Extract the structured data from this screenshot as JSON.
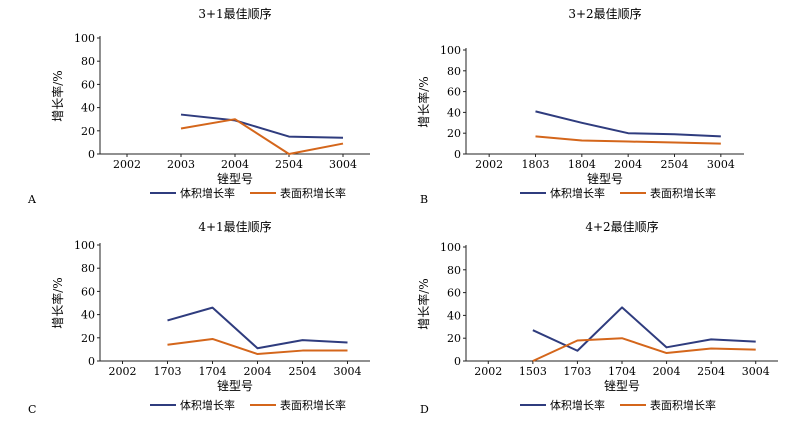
{
  "colors": {
    "volume": "#2f3c7e",
    "surface": "#d4661b",
    "axis": "#222222"
  },
  "chart_data": [
    {
      "type": "line",
      "panel": "A",
      "title": "3+1最佳顺序",
      "xlabel": "锉型号",
      "ylabel": "增长率/%",
      "categories": [
        "2002",
        "2003",
        "2004",
        "2504",
        "3004"
      ],
      "ylim": [
        0,
        100
      ],
      "yticks": [
        0,
        20,
        40,
        60,
        80,
        100
      ],
      "series": [
        {
          "name": "体积增长率",
          "values": [
            null,
            34,
            29,
            15,
            14
          ]
        },
        {
          "name": "表面积增长率",
          "values": [
            null,
            22,
            30,
            0,
            9
          ]
        }
      ],
      "legend": "bottom"
    },
    {
      "type": "line",
      "panel": "B",
      "title": "3+2最佳顺序",
      "xlabel": "锉型号",
      "ylabel": "增长率/%",
      "categories": [
        "2002",
        "1803",
        "1804",
        "2004",
        "2504",
        "3004"
      ],
      "ylim": [
        0,
        100
      ],
      "yticks": [
        0,
        20,
        40,
        60,
        80,
        100
      ],
      "series": [
        {
          "name": "体积增长率",
          "values": [
            null,
            41,
            30,
            20,
            19,
            17
          ]
        },
        {
          "name": "表面积增长率",
          "values": [
            null,
            17,
            13,
            12,
            11,
            10
          ]
        }
      ],
      "legend": "bottom"
    },
    {
      "type": "line",
      "panel": "C",
      "title": "4+1最佳顺序",
      "xlabel": "锉型号",
      "ylabel": "增长率/%",
      "categories": [
        "2002",
        "1703",
        "1704",
        "2004",
        "2504",
        "3004"
      ],
      "ylim": [
        0,
        100
      ],
      "yticks": [
        0,
        20,
        40,
        60,
        80,
        100
      ],
      "series": [
        {
          "name": "体积增长率",
          "values": [
            null,
            35,
            46,
            11,
            18,
            16
          ]
        },
        {
          "name": "表面积增长率",
          "values": [
            null,
            14,
            19,
            6,
            9,
            9
          ]
        }
      ],
      "legend": "bottom"
    },
    {
      "type": "line",
      "panel": "D",
      "title": "4+2最佳顺序",
      "xlabel": "锉型号",
      "ylabel": "增长率/%",
      "categories": [
        "2002",
        "1503",
        "1703",
        "1704",
        "2004",
        "2504",
        "3004"
      ],
      "ylim": [
        0,
        100
      ],
      "yticks": [
        0,
        20,
        40,
        60,
        80,
        100
      ],
      "series": [
        {
          "name": "体积增长率",
          "values": [
            null,
            27,
            9,
            47,
            12,
            19,
            17
          ]
        },
        {
          "name": "表面积增长率",
          "values": [
            null,
            0,
            18,
            20,
            7,
            11,
            10
          ]
        }
      ],
      "legend": "bottom"
    }
  ]
}
